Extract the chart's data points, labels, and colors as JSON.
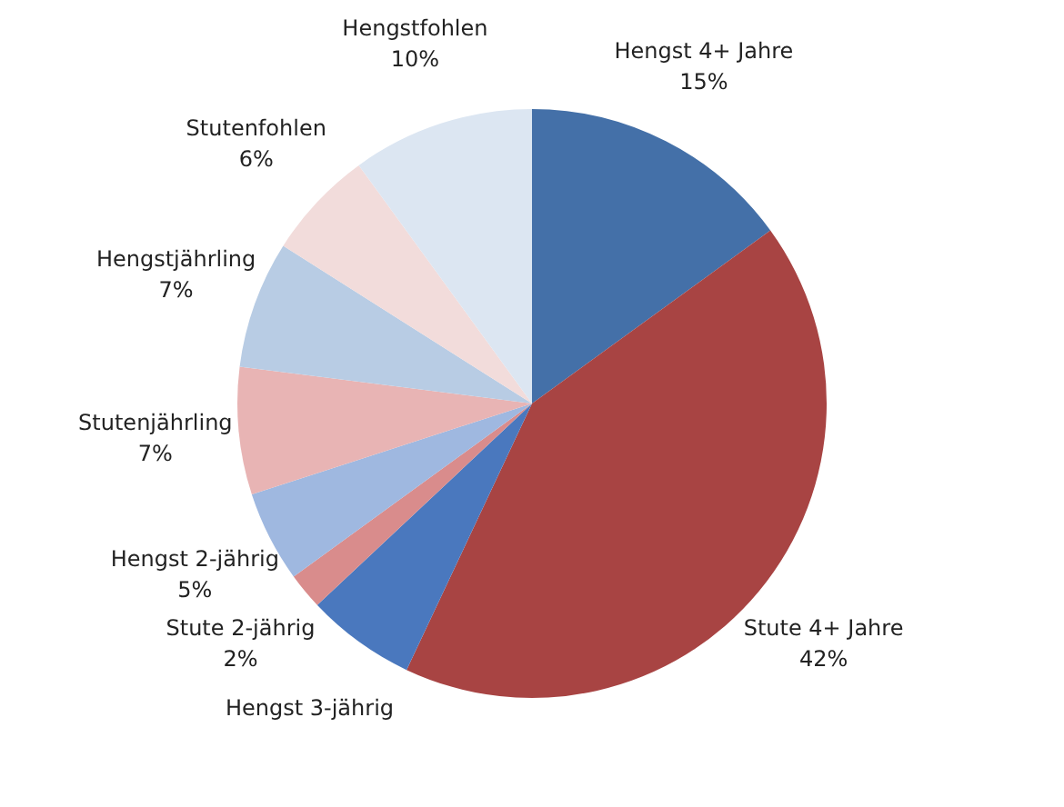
{
  "chart_data": {
    "type": "pie",
    "categories": [
      "Hengst 4+ Jahre",
      "Stute 4+ Jahre",
      "Hengst 3-jährig",
      "Stute 2-jährig",
      "Hengst 2-jährig",
      "Stutenjährling",
      "Hengstjährling",
      "Stutenfohlen",
      "Hengstfohlen"
    ],
    "values": [
      15,
      42,
      6,
      2,
      5,
      7,
      7,
      6,
      10
    ],
    "value_labels": [
      "15%",
      "42%",
      null,
      "2%",
      "5%",
      "7%",
      "7%",
      "6%",
      "10%"
    ],
    "colors": [
      "#4470a8",
      "#a84443",
      "#4a78be",
      "#d98c8c",
      "#9fb8e0",
      "#e8b4b4",
      "#b8cce4",
      "#f2dcdb",
      "#dce6f2"
    ],
    "legend": false
  }
}
